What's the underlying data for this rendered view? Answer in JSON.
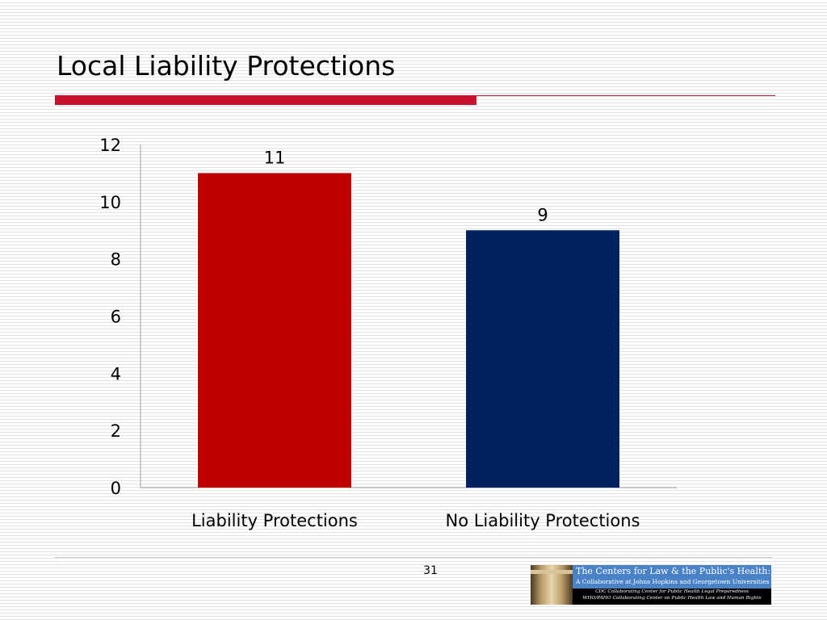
{
  "slide": {
    "title": "Local Liability Protections",
    "page_number": "31"
  },
  "colors": {
    "accent": "#c8102e",
    "bar_red": "#c00000",
    "bar_navy": "#002060"
  },
  "logo": {
    "name": "The Centers for Law & the Public's Health:",
    "subtitle": "A Collaborative at Johns Hopkins and Georgetown Universities",
    "line1": "CDC Collaborating Center for Public Health Legal Preparedness",
    "line2": "WHO/PAHO Collaborating Center on Public Health Law and Human Rights",
    "icon": "pillar-icon"
  },
  "chart_data": {
    "type": "bar",
    "categories": [
      "Liability Protections",
      "No Liability Protections"
    ],
    "values": [
      11,
      9
    ],
    "data_labels": [
      "11",
      "9"
    ],
    "bar_colors": [
      "#c00000",
      "#002060"
    ],
    "ylim": [
      0,
      12
    ],
    "yticks": [
      0,
      2,
      4,
      6,
      8,
      10,
      12
    ],
    "ytick_labels": [
      "0",
      "2",
      "4",
      "6",
      "8",
      "10",
      "12"
    ],
    "grid": false,
    "legend": "none"
  }
}
